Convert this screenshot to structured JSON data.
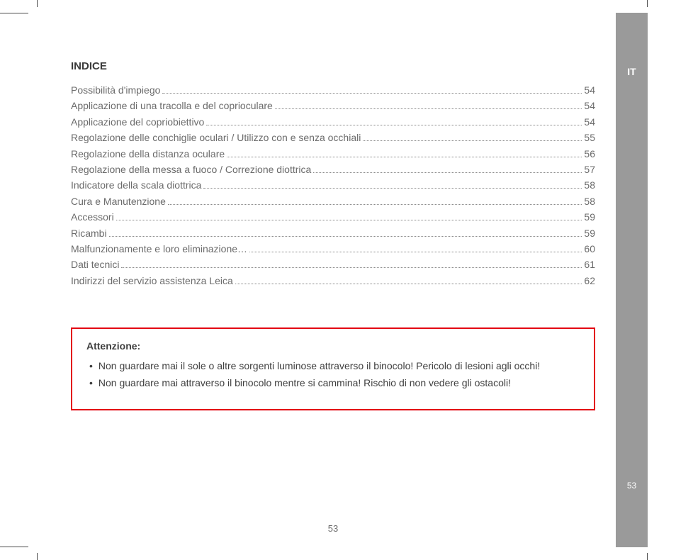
{
  "language_tab": "IT",
  "side_page_number": "53",
  "footer_page_number": "53",
  "title": "INDICE",
  "toc": [
    {
      "label": "Possibilità d'impiego",
      "page": "54"
    },
    {
      "label": "Applicazione di una tracolla e del coprioculare",
      "page": "54"
    },
    {
      "label": "Applicazione del copriobiettivo",
      "page": "54"
    },
    {
      "label": "Regolazione delle conchiglie oculari / Utilizzo con e senza occhiali",
      "page": "55"
    },
    {
      "label": "Regolazione della distanza oculare",
      "page": "56"
    },
    {
      "label": "Regolazione della messa a fuoco / Correzione diottrica",
      "page": "57"
    },
    {
      "label": "Indicatore della scala diottrica",
      "page": "58"
    },
    {
      "label": "Cura e Manutenzione",
      "page": "58"
    },
    {
      "label": "Accessori",
      "page": "59"
    },
    {
      "label": "Ricambi",
      "page": "59"
    },
    {
      "label": "Malfunzionamente e loro eliminazione…",
      "page": "60"
    },
    {
      "label": "Dati tecnici",
      "page": "61"
    },
    {
      "label": "Indirizzi del servizio assistenza Leica",
      "page": "62"
    }
  ],
  "warning": {
    "title": "Attenzione:",
    "items": [
      "Non guardare mai il sole o altre sorgenti luminose attraverso il binocolo! Pericolo di lesioni agli occhi!",
      "Non guardare mai attraverso il binocolo mentre si cammina! Rischio di non vedere gli ostacoli!"
    ]
  },
  "colors": {
    "sidebar_bg": "#9a9a9a",
    "warning_border": "#e30613",
    "text_body": "#6b6b6b",
    "text_title": "#3a3a3a"
  }
}
